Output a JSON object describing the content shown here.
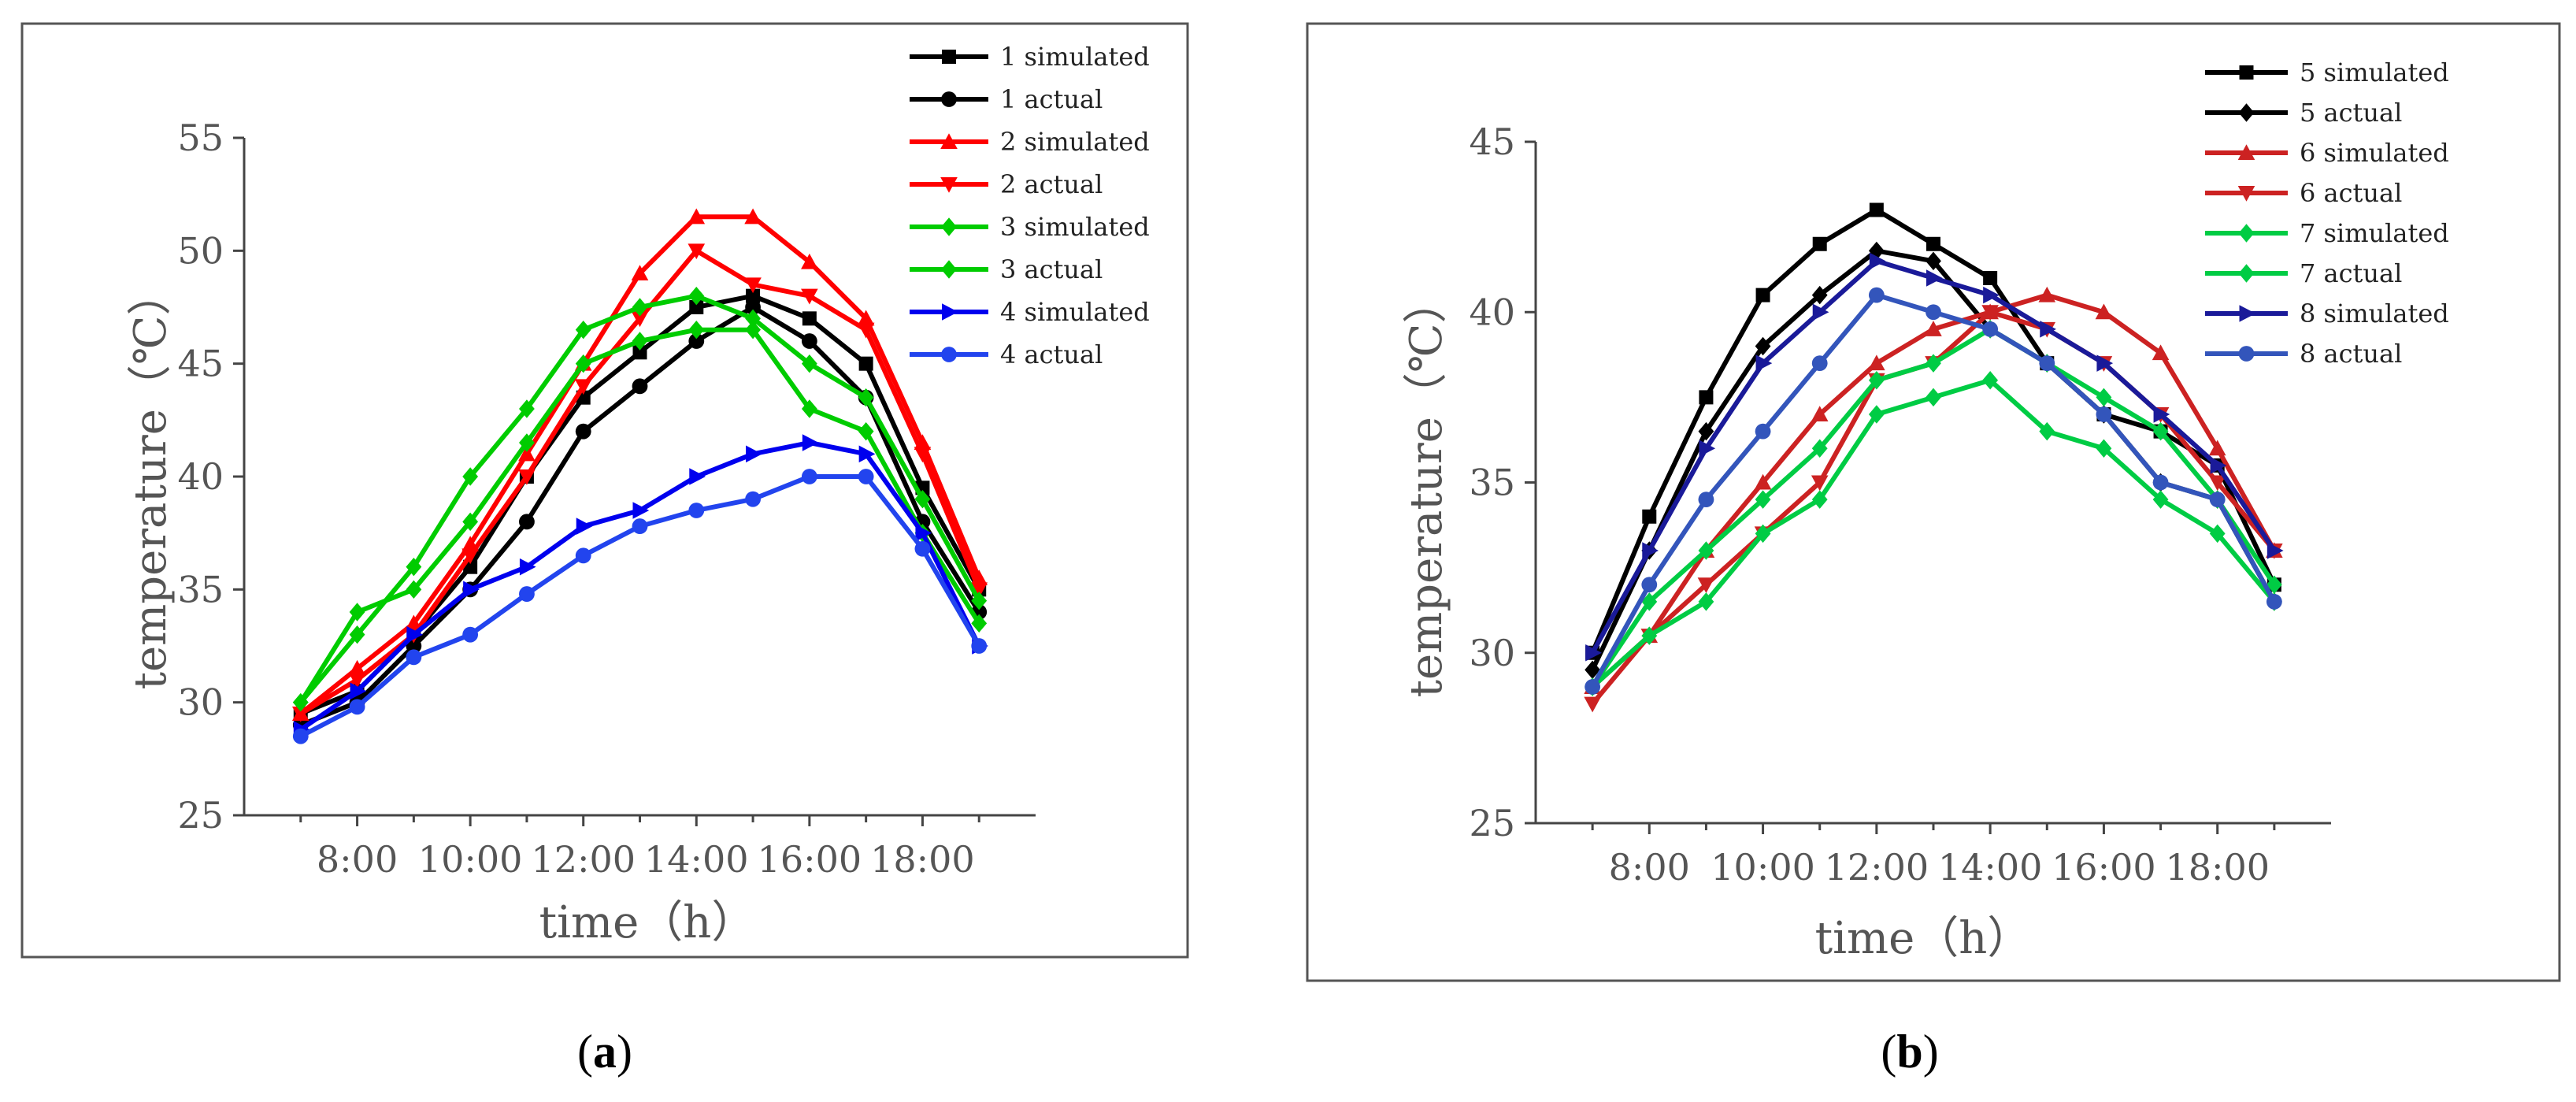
{
  "chart_data": [
    {
      "type": "line",
      "panel": "a",
      "caption_open": "(",
      "caption_letter": "a",
      "caption_close": ")",
      "title": "",
      "xlabel": "time（h）",
      "ylabel": "temperature（℃）",
      "x": [
        7,
        8,
        9,
        10,
        11,
        12,
        13,
        14,
        15,
        16,
        17,
        18,
        19
      ],
      "xlim": [
        6.0,
        20.0
      ],
      "xticks": [
        8,
        10,
        12,
        14,
        16,
        18
      ],
      "xtick_labels": [
        "8:00",
        "10:00",
        "12:00",
        "14:00",
        "16:00",
        "18:00"
      ],
      "ylim": [
        25,
        55
      ],
      "yticks": [
        25,
        30,
        35,
        40,
        45,
        50,
        55
      ],
      "ytick_labels": [
        "25",
        "30",
        "35",
        "40",
        "45",
        "50",
        "55"
      ],
      "legend_position": "top-right",
      "series": [
        {
          "name": "1 simulated",
          "color": "#000000",
          "marker": "square",
          "values": [
            29.5,
            30.5,
            33.0,
            36.0,
            40.0,
            43.5,
            45.5,
            47.5,
            48.0,
            47.0,
            45.0,
            39.5,
            35.0
          ]
        },
        {
          "name": "1 actual",
          "color": "#000000",
          "marker": "circle",
          "values": [
            29.0,
            30.0,
            32.5,
            35.0,
            38.0,
            42.0,
            44.0,
            46.0,
            47.5,
            46.0,
            43.5,
            38.0,
            34.0
          ]
        },
        {
          "name": "2 simulated",
          "color": "#ff0000",
          "marker": "triangle-up",
          "values": [
            29.5,
            31.5,
            33.5,
            37.0,
            41.0,
            45.0,
            49.0,
            51.5,
            51.5,
            49.5,
            47.0,
            41.5,
            35.5
          ]
        },
        {
          "name": "2 actual",
          "color": "#ff0000",
          "marker": "triangle-down",
          "values": [
            29.5,
            31.0,
            33.0,
            36.5,
            40.0,
            44.0,
            47.0,
            50.0,
            48.5,
            48.0,
            46.5,
            41.0,
            35.0
          ]
        },
        {
          "name": "3 simulated",
          "color": "#00cc00",
          "marker": "diamond",
          "values": [
            30.0,
            33.0,
            36.0,
            40.0,
            43.0,
            46.5,
            47.5,
            48.0,
            47.0,
            45.0,
            43.5,
            39.0,
            34.5
          ]
        },
        {
          "name": "3 actual",
          "color": "#00cc00",
          "marker": "diamond",
          "values": [
            30.0,
            34.0,
            35.0,
            38.0,
            41.5,
            45.0,
            46.0,
            46.5,
            46.5,
            43.0,
            42.0,
            37.5,
            33.5
          ]
        },
        {
          "name": "4 simulated",
          "color": "#0000ee",
          "marker": "triangle-right",
          "values": [
            28.8,
            30.5,
            33.0,
            35.0,
            36.0,
            37.8,
            38.5,
            40.0,
            41.0,
            41.5,
            41.0,
            37.5,
            32.5
          ]
        },
        {
          "name": "4 actual",
          "color": "#2244ee",
          "marker": "circle",
          "values": [
            28.5,
            29.8,
            32.0,
            33.0,
            34.8,
            36.5,
            37.8,
            38.5,
            39.0,
            40.0,
            40.0,
            36.8,
            32.5
          ]
        }
      ]
    },
    {
      "type": "line",
      "panel": "b",
      "caption_open": "(",
      "caption_letter": "b",
      "caption_close": ")",
      "title": "",
      "xlabel": "time（h）",
      "ylabel": "temperature（℃）",
      "x": [
        7,
        8,
        9,
        10,
        11,
        12,
        13,
        14,
        15,
        16,
        17,
        18,
        19
      ],
      "xlim": [
        6.0,
        20.0
      ],
      "xticks": [
        8,
        10,
        12,
        14,
        16,
        18
      ],
      "xtick_labels": [
        "8:00",
        "10:00",
        "12:00",
        "14:00",
        "16:00",
        "18:00"
      ],
      "ylim": [
        25,
        45
      ],
      "yticks": [
        25,
        30,
        35,
        40,
        45
      ],
      "ytick_labels": [
        "25",
        "30",
        "35",
        "40",
        "45"
      ],
      "legend_position": "top-right",
      "series": [
        {
          "name": "5 simulated",
          "color": "#000000",
          "marker": "square",
          "values": [
            30.0,
            34.0,
            37.5,
            40.5,
            42.0,
            43.0,
            42.0,
            41.0,
            38.5,
            37.0,
            36.5,
            35.5,
            32.0
          ]
        },
        {
          "name": "5 actual",
          "color": "#000000",
          "marker": "diamond",
          "values": [
            29.5,
            33.0,
            36.5,
            39.0,
            40.5,
            41.8,
            41.5,
            39.5,
            38.5,
            37.0,
            35.0,
            34.5,
            31.5
          ]
        },
        {
          "name": "6 simulated",
          "color": "#cc2222",
          "marker": "triangle-up",
          "values": [
            29.0,
            30.5,
            33.0,
            35.0,
            37.0,
            38.5,
            39.5,
            40.0,
            40.5,
            40.0,
            38.8,
            36.0,
            33.0
          ]
        },
        {
          "name": "6 actual",
          "color": "#cc2222",
          "marker": "triangle-down",
          "values": [
            28.5,
            30.5,
            32.0,
            33.5,
            35.0,
            38.0,
            38.5,
            40.0,
            39.5,
            38.5,
            37.0,
            35.0,
            33.0
          ]
        },
        {
          "name": "7 simulated",
          "color": "#00cc44",
          "marker": "diamond",
          "values": [
            29.0,
            31.5,
            33.0,
            34.5,
            36.0,
            38.0,
            38.5,
            39.5,
            38.5,
            37.5,
            36.5,
            34.5,
            32.0
          ]
        },
        {
          "name": "7 actual",
          "color": "#00cc44",
          "marker": "diamond",
          "values": [
            29.0,
            30.5,
            31.5,
            33.5,
            34.5,
            37.0,
            37.5,
            38.0,
            36.5,
            36.0,
            34.5,
            33.5,
            31.5
          ]
        },
        {
          "name": "8 simulated",
          "color": "#1a1a99",
          "marker": "triangle-right",
          "values": [
            30.0,
            33.0,
            36.0,
            38.5,
            40.0,
            41.5,
            41.0,
            40.5,
            39.5,
            38.5,
            37.0,
            35.5,
            33.0
          ]
        },
        {
          "name": "8 actual",
          "color": "#3355bb",
          "marker": "circle",
          "values": [
            29.0,
            32.0,
            34.5,
            36.5,
            38.5,
            40.5,
            40.0,
            39.5,
            38.5,
            37.0,
            35.0,
            34.5,
            31.5
          ]
        }
      ]
    }
  ]
}
